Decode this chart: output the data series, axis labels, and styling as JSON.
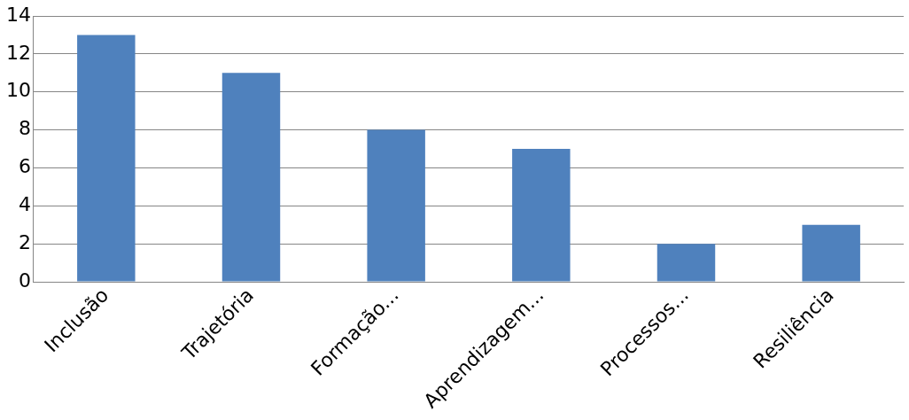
{
  "chart_data": {
    "type": "bar",
    "categories": [
      "Inclusão",
      "Trajetória",
      "Formação...",
      "Aprendizagem...",
      "Processos...",
      "Resiliência"
    ],
    "values": [
      13,
      11,
      8,
      7,
      2,
      3
    ],
    "color": "#4f81bd",
    "ylim": [
      0,
      14
    ],
    "yticks": [
      0,
      2,
      4,
      6,
      8,
      10,
      12,
      14
    ],
    "grid": "y",
    "legend": false
  }
}
